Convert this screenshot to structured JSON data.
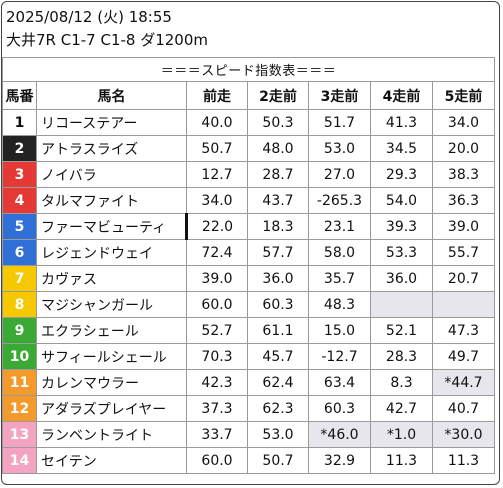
{
  "header": {
    "line1": "2025/08/12 (火) 18:55",
    "line2": "大井7R C1-7 C1-8 ダ1200m"
  },
  "table": {
    "title": "＝＝＝スピード指数表＝＝＝",
    "columns": [
      "馬番",
      "馬名",
      "前走",
      "2走前",
      "3走前",
      "4走前",
      "5走前"
    ],
    "rows": [
      {
        "num": "1",
        "name": "リコーステアー",
        "values": [
          "40.0",
          "50.3",
          "51.7",
          "41.3",
          "34.0"
        ]
      },
      {
        "num": "2",
        "name": "アトラスライズ",
        "values": [
          "50.7",
          "48.0",
          "53.0",
          "34.5",
          "20.0"
        ]
      },
      {
        "num": "3",
        "name": "ノイバラ",
        "values": [
          "12.7",
          "28.7",
          "27.0",
          "29.3",
          "38.3"
        ]
      },
      {
        "num": "4",
        "name": "タルマファイト",
        "values": [
          "34.0",
          "43.7",
          "-265.3",
          "54.0",
          "36.3"
        ]
      },
      {
        "num": "5",
        "name": "ファーマビューティ",
        "values": [
          "22.0",
          "18.3",
          "23.1",
          "39.3",
          "39.0"
        ]
      },
      {
        "num": "6",
        "name": "レジェンドウェイ",
        "values": [
          "72.4",
          "57.7",
          "58.0",
          "53.3",
          "55.7"
        ]
      },
      {
        "num": "7",
        "name": "カヴァス",
        "values": [
          "39.0",
          "36.0",
          "35.7",
          "36.0",
          "20.7"
        ]
      },
      {
        "num": "8",
        "name": "マジシャンガール",
        "values": [
          "60.0",
          "60.3",
          "48.3",
          "",
          ""
        ]
      },
      {
        "num": "9",
        "name": "エクラシェール",
        "values": [
          "52.7",
          "61.1",
          "15.0",
          "52.1",
          "47.3"
        ]
      },
      {
        "num": "10",
        "name": "サフィールシェール",
        "values": [
          "70.3",
          "45.7",
          "-12.7",
          "28.3",
          "49.7"
        ]
      },
      {
        "num": "11",
        "name": "カレンマウラー",
        "values": [
          "42.3",
          "62.4",
          "63.4",
          "8.3",
          "*44.7"
        ]
      },
      {
        "num": "12",
        "name": "アダラズプレイヤー",
        "values": [
          "37.3",
          "62.3",
          "60.3",
          "42.7",
          "40.7"
        ]
      },
      {
        "num": "13",
        "name": "ランベントライト",
        "values": [
          "33.7",
          "53.0",
          "*46.0",
          "*1.0",
          "*30.0"
        ]
      },
      {
        "num": "14",
        "name": "セイテン",
        "values": [
          "60.0",
          "50.7",
          "32.9",
          "11.3",
          "11.3"
        ]
      }
    ]
  },
  "colors": {
    "frame_colors": [
      "#ffffff",
      "#222222",
      "#e53935",
      "#e53935",
      "#2f6fd6",
      "#2f6fd6",
      "#f5c800",
      "#f5c800",
      "#3aaa35",
      "#3aaa35",
      "#f39a2b",
      "#f39a2b",
      "#f4a3c0",
      "#f4a3c0"
    ],
    "grey_cell": "#e6e6ec"
  }
}
